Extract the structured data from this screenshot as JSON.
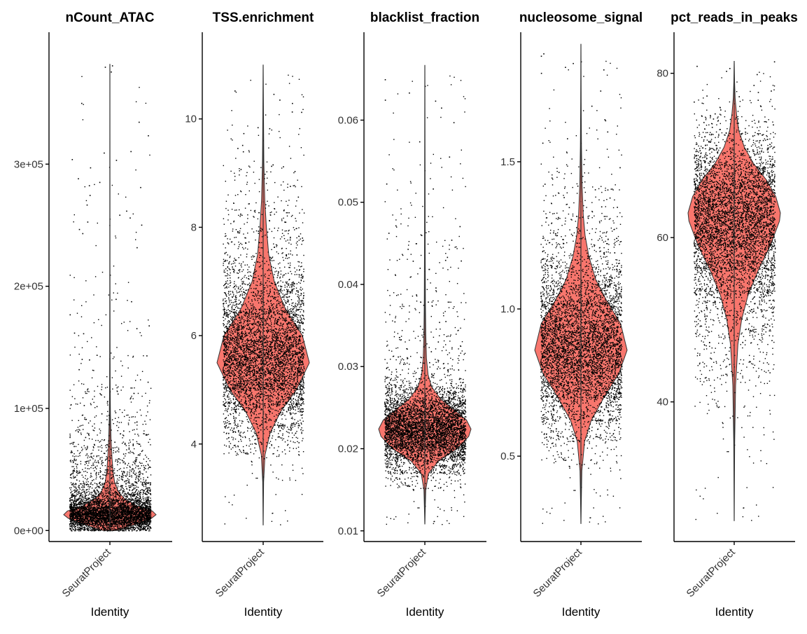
{
  "chart_data": [
    {
      "type": "violin",
      "title": "nCount_ATAC",
      "xlabel": "Identity",
      "categories": [
        "SeuratProject"
      ],
      "ylim": [
        -9000,
        408000
      ],
      "yticks": [
        0,
        100000,
        200000,
        300000
      ],
      "ytick_labels": [
        "0e+00",
        "1e+05",
        "2e+05",
        "3e+05"
      ],
      "stats": {
        "min": 2500,
        "max": 382000,
        "mode": 13000
      },
      "density": [
        [
          0,
          0.15
        ],
        [
          5000,
          0.55
        ],
        [
          10000,
          0.9
        ],
        [
          13000,
          1.0
        ],
        [
          16000,
          0.92
        ],
        [
          20000,
          0.6
        ],
        [
          26000,
          0.32
        ],
        [
          32000,
          0.18
        ],
        [
          40000,
          0.1
        ],
        [
          50000,
          0.065
        ],
        [
          60000,
          0.045
        ],
        [
          75000,
          0.025
        ],
        [
          95000,
          0.012
        ],
        [
          120000,
          0.006
        ],
        [
          160000,
          0.003
        ],
        [
          220000,
          0.0015
        ],
        [
          300000,
          0.001
        ],
        [
          382000,
          0
        ]
      ],
      "fill_color": "#F8766D",
      "point_color": "#000000"
    },
    {
      "type": "violin",
      "title": "TSS.enrichment",
      "xlabel": "Identity",
      "categories": [
        "SeuratProject"
      ],
      "ylim": [
        2.2,
        11.6
      ],
      "yticks": [
        4,
        6,
        8,
        10
      ],
      "ytick_labels": [
        "4",
        "6",
        "8",
        "10"
      ],
      "stats": {
        "min": 2.5,
        "max": 11.0,
        "mode": 5.5
      },
      "density": [
        [
          2.5,
          0
        ],
        [
          3.3,
          0.01
        ],
        [
          3.8,
          0.04
        ],
        [
          4.2,
          0.15
        ],
        [
          4.6,
          0.38
        ],
        [
          5.0,
          0.72
        ],
        [
          5.5,
          1.0
        ],
        [
          6.0,
          0.85
        ],
        [
          6.5,
          0.48
        ],
        [
          7.0,
          0.24
        ],
        [
          7.5,
          0.12
        ],
        [
          8.0,
          0.07
        ],
        [
          8.5,
          0.035
        ],
        [
          9.2,
          0.015
        ],
        [
          10.0,
          0.008
        ],
        [
          11.0,
          0
        ]
      ],
      "fill_color": "#F8766D",
      "point_color": "#000000"
    },
    {
      "type": "violin",
      "title": "blacklist_fraction",
      "xlabel": "Identity",
      "categories": [
        "SeuratProject"
      ],
      "ylim": [
        0.0087,
        0.0707
      ],
      "yticks": [
        0.01,
        0.02,
        0.03,
        0.04,
        0.05,
        0.06
      ],
      "ytick_labels": [
        "0.01",
        "0.02",
        "0.03",
        "0.04",
        "0.05",
        "0.06"
      ],
      "stats": {
        "min": 0.0108,
        "max": 0.0667,
        "mode": 0.0224
      },
      "density": [
        [
          0.0108,
          0
        ],
        [
          0.015,
          0.02
        ],
        [
          0.017,
          0.08
        ],
        [
          0.0185,
          0.3
        ],
        [
          0.02,
          0.7
        ],
        [
          0.0215,
          0.95
        ],
        [
          0.0224,
          1.0
        ],
        [
          0.0235,
          0.9
        ],
        [
          0.0248,
          0.62
        ],
        [
          0.026,
          0.35
        ],
        [
          0.0275,
          0.15
        ],
        [
          0.029,
          0.07
        ],
        [
          0.031,
          0.035
        ],
        [
          0.034,
          0.02
        ],
        [
          0.038,
          0.012
        ],
        [
          0.045,
          0.007
        ],
        [
          0.055,
          0.004
        ],
        [
          0.0667,
          0
        ]
      ],
      "fill_color": "#F8766D",
      "point_color": "#000000"
    },
    {
      "type": "violin",
      "title": "nucleosome_signal",
      "xlabel": "Identity",
      "categories": [
        "SeuratProject"
      ],
      "ylim": [
        0.21,
        1.94
      ],
      "yticks": [
        0.5,
        1.0,
        1.5
      ],
      "ytick_labels": [
        "0.5",
        "1.0",
        "1.5"
      ],
      "stats": {
        "min": 0.27,
        "max": 1.9,
        "mode": 0.87
      },
      "density": [
        [
          0.27,
          0
        ],
        [
          0.45,
          0.02
        ],
        [
          0.55,
          0.08
        ],
        [
          0.62,
          0.22
        ],
        [
          0.7,
          0.5
        ],
        [
          0.78,
          0.82
        ],
        [
          0.86,
          1.0
        ],
        [
          0.95,
          0.86
        ],
        [
          1.03,
          0.55
        ],
        [
          1.1,
          0.32
        ],
        [
          1.18,
          0.17
        ],
        [
          1.25,
          0.09
        ],
        [
          1.32,
          0.05
        ],
        [
          1.42,
          0.025
        ],
        [
          1.55,
          0.012
        ],
        [
          1.7,
          0.005
        ],
        [
          1.9,
          0
        ]
      ],
      "fill_color": "#F8766D",
      "point_color": "#000000"
    },
    {
      "type": "violin",
      "title": "pct_reads_in_peaks",
      "xlabel": "Identity",
      "categories": [
        "SeuratProject"
      ],
      "ylim": [
        23,
        85
      ],
      "yticks": [
        40,
        60,
        80
      ],
      "ytick_labels": [
        "40",
        "60",
        "80"
      ],
      "stats": {
        "min": 25.5,
        "max": 81.5,
        "mode": 62.5
      },
      "density": [
        [
          25.5,
          0
        ],
        [
          35,
          0.01
        ],
        [
          42,
          0.03
        ],
        [
          47,
          0.08
        ],
        [
          50,
          0.16
        ],
        [
          53,
          0.3
        ],
        [
          56,
          0.52
        ],
        [
          59,
          0.78
        ],
        [
          62,
          0.98
        ],
        [
          63,
          1.0
        ],
        [
          65,
          0.9
        ],
        [
          67,
          0.7
        ],
        [
          69,
          0.42
        ],
        [
          71,
          0.22
        ],
        [
          73,
          0.1
        ],
        [
          75,
          0.05
        ],
        [
          77,
          0.02
        ],
        [
          79,
          0.008
        ],
        [
          81.5,
          0
        ]
      ],
      "fill_color": "#F8766D",
      "point_color": "#000000"
    }
  ]
}
